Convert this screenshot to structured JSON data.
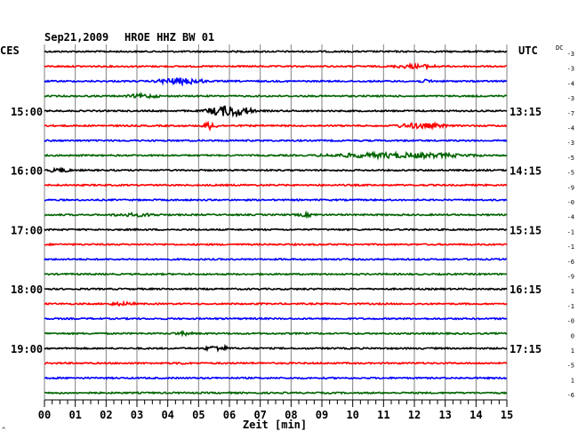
{
  "header": {
    "date": "Sep21,2009",
    "station": "HROE HHZ BW 01",
    "left_zone": "CES",
    "right_zone": "UTC",
    "dc_label": "DC"
  },
  "chart_data": {
    "type": "line",
    "xlabel": "Zeit [min]",
    "xlim": [
      0,
      15
    ],
    "x_ticks": [
      "00",
      "01",
      "02",
      "03",
      "04",
      "05",
      "06",
      "07",
      "08",
      "09",
      "10",
      "11",
      "12",
      "13",
      "14",
      "15"
    ],
    "trace_colors": [
      "#000000",
      "#ff0000",
      "#0000ff",
      "#006400"
    ],
    "trace_count": 24,
    "left_time_labels": [
      {
        "trace": 4,
        "text": "15:00"
      },
      {
        "trace": 8,
        "text": "16:00"
      },
      {
        "trace": 12,
        "text": "17:00"
      },
      {
        "trace": 16,
        "text": "18:00"
      },
      {
        "trace": 20,
        "text": "19:00"
      }
    ],
    "right_time_labels": [
      {
        "trace": 4,
        "text": "13:15"
      },
      {
        "trace": 8,
        "text": "14:15"
      },
      {
        "trace": 12,
        "text": "15:15"
      },
      {
        "trace": 16,
        "text": "16:15"
      },
      {
        "trace": 20,
        "text": "17:15"
      }
    ],
    "dc_offsets": [
      "-3",
      "-3",
      "-4",
      "-3",
      "-7",
      "-4",
      "-3",
      "-5",
      "-5",
      "-9",
      "-0",
      "-4",
      "-1",
      "-1",
      "-6",
      "-9",
      "1",
      "-1",
      "-0",
      "0",
      "1",
      "-5",
      "1",
      "-6"
    ],
    "events": [
      {
        "trace": 1,
        "start": 10.9,
        "end": 13.2,
        "amp": 0.35
      },
      {
        "trace": 2,
        "start": 3.3,
        "end": 5.5,
        "amp": 0.55
      },
      {
        "trace": 2,
        "start": 12.0,
        "end": 12.8,
        "amp": 0.3
      },
      {
        "trace": 3,
        "start": 2.4,
        "end": 4.0,
        "amp": 0.35
      },
      {
        "trace": 4,
        "start": 5.0,
        "end": 7.0,
        "amp": 0.9
      },
      {
        "trace": 5,
        "start": 5.0,
        "end": 5.7,
        "amp": 0.6
      },
      {
        "trace": 5,
        "start": 11.0,
        "end": 13.4,
        "amp": 0.45
      },
      {
        "trace": 7,
        "start": 8.0,
        "end": 14.9,
        "amp": 0.45
      },
      {
        "trace": 8,
        "start": 0.0,
        "end": 1.0,
        "amp": 0.4
      },
      {
        "trace": 11,
        "start": 1.7,
        "end": 4.2,
        "amp": 0.3
      },
      {
        "trace": 11,
        "start": 8.0,
        "end": 9.0,
        "amp": 0.3
      },
      {
        "trace": 17,
        "start": 1.8,
        "end": 3.2,
        "amp": 0.3
      },
      {
        "trace": 19,
        "start": 4.0,
        "end": 5.0,
        "amp": 0.3
      },
      {
        "trace": 20,
        "start": 5.0,
        "end": 6.2,
        "amp": 0.45
      },
      {
        "trace": 21,
        "start": 4.2,
        "end": 4.7,
        "amp": 0.25
      }
    ]
  }
}
